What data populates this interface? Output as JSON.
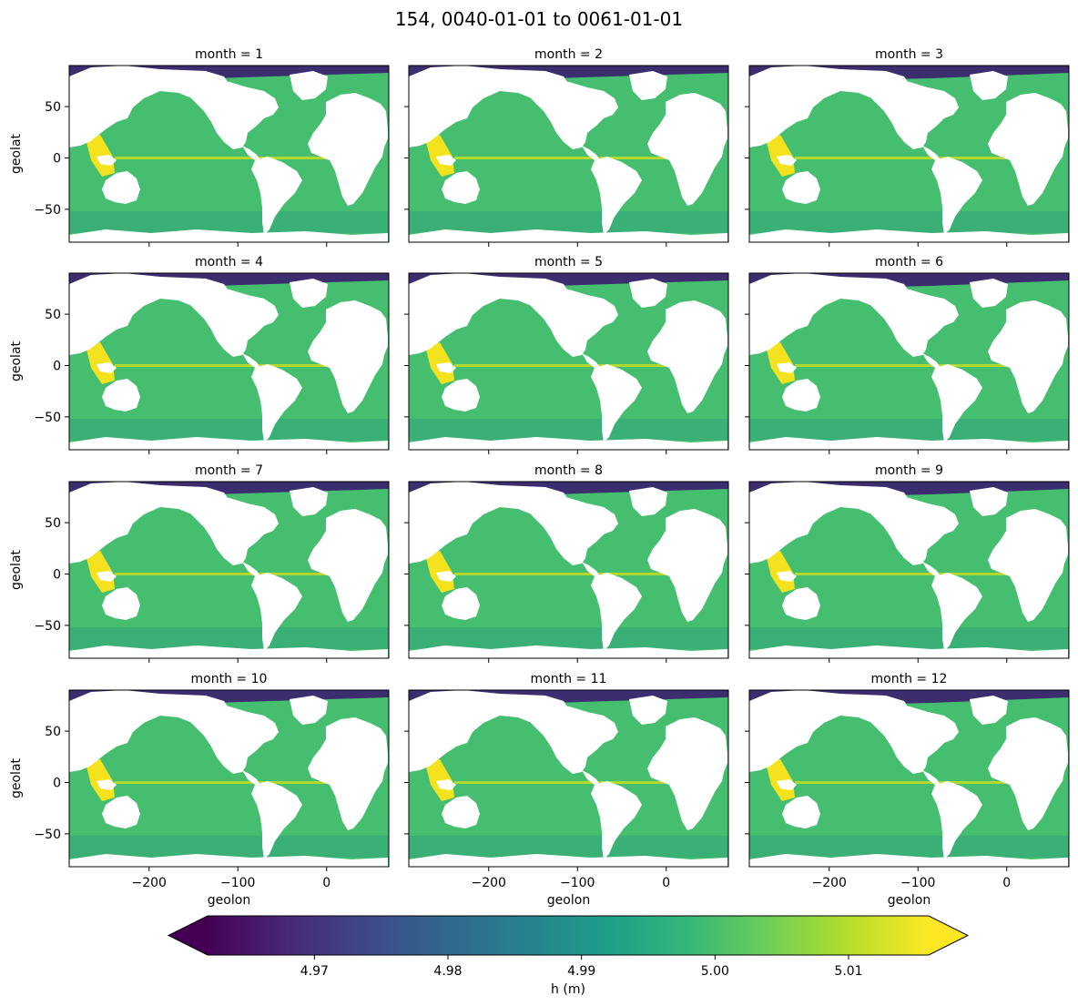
{
  "chart_data": {
    "type": "heatmap",
    "title": "154, 0040-01-01 to 0061-01-01",
    "panel_titles": [
      "month = 1",
      "month = 2",
      "month = 3",
      "month = 4",
      "month = 5",
      "month = 6",
      "month = 7",
      "month = 8",
      "month = 9",
      "month = 10",
      "month = 11",
      "month = 12"
    ],
    "xlabel": "geolon",
    "ylabel": "geolat",
    "xlim": [
      -290,
      70
    ],
    "ylim": [
      -82,
      90
    ],
    "xticks": [
      -200,
      -100,
      0
    ],
    "xtick_labels": [
      "−200",
      "−100",
      "0"
    ],
    "yticks": [
      -50,
      0,
      50
    ],
    "ytick_labels": [
      "−50",
      "0",
      "50"
    ],
    "colorbar": {
      "label": "h (m)",
      "vmin": 4.962,
      "vmax": 5.016,
      "extend": "both",
      "ticks": [
        4.97,
        4.98,
        4.99,
        5.0,
        5.01
      ],
      "tick_labels": [
        "4.97",
        "4.98",
        "4.99",
        "5.00",
        "5.01"
      ],
      "colormap": "viridis",
      "colors": [
        "#440154",
        "#482878",
        "#3e4989",
        "#31688e",
        "#26828e",
        "#1f9e89",
        "#35b779",
        "#6ece58",
        "#b5de2b",
        "#fde725"
      ]
    },
    "ocean_color": "#45bf6f",
    "land_color": "#ffffff",
    "arctic_color": "#3b1d6e",
    "equator_color": "#d8e219",
    "hot_color": "#f5e21f"
  }
}
